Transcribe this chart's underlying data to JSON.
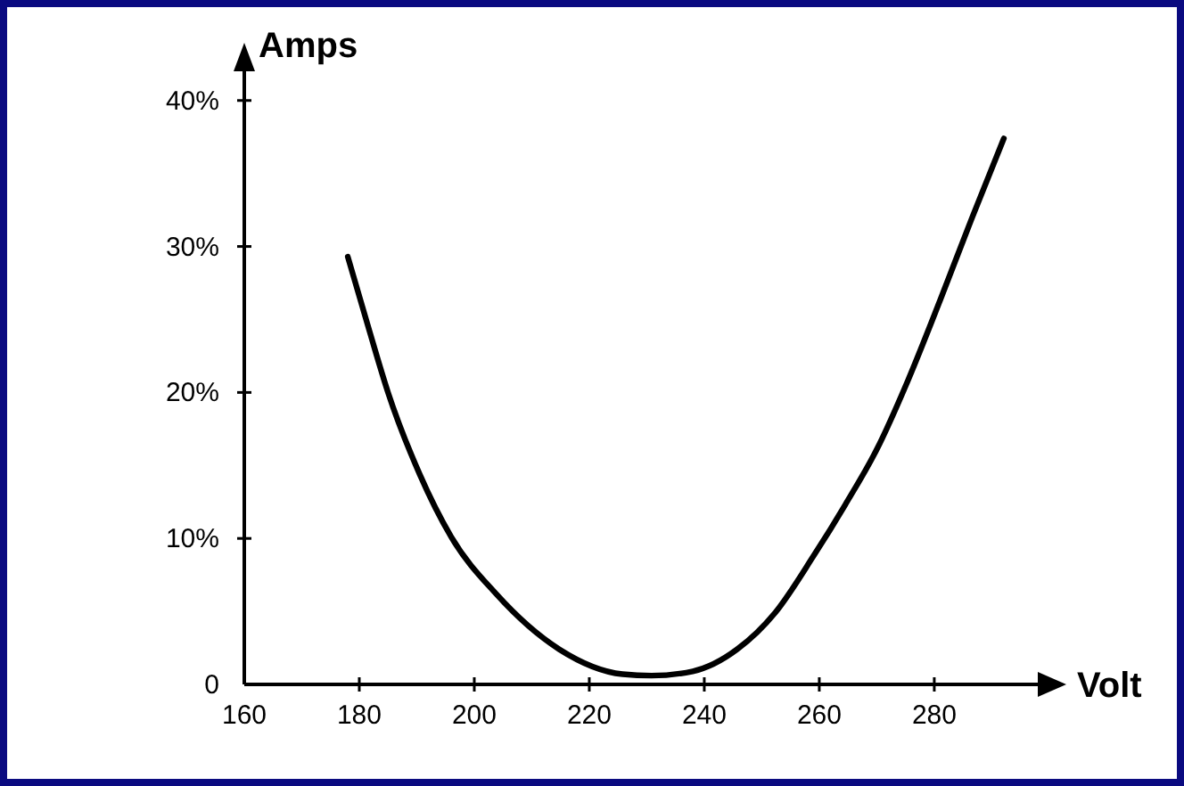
{
  "chart_data": {
    "type": "line",
    "xlabel": "Volt",
    "ylabel": "Amps",
    "x": [
      178.0,
      181.7,
      185.0,
      190.5,
      196.0,
      203.8,
      214.8,
      225.8,
      230.8,
      238.0,
      245.7,
      252.3,
      259.0,
      264.5,
      270.0,
      275.5,
      281.1,
      286.6,
      292.1
    ],
    "series": [
      {
        "color": "#000000",
        "values": [
          29.3,
          24.3,
          20.0,
          14.4,
          10.1,
          6.2,
          2.4,
          0.7,
          0.6,
          0.9,
          2.4,
          4.9,
          8.8,
          12.3,
          16.1,
          20.9,
          26.4,
          32.0,
          37.4
        ]
      }
    ],
    "xlim": [
      160,
      298
    ],
    "ylim": [
      0,
      42
    ],
    "xticks": [
      160,
      180,
      200,
      220,
      240,
      260,
      280
    ],
    "yticks": [
      0,
      {
        "value": 10,
        "label": "10%"
      },
      {
        "value": 20,
        "label": "20%"
      },
      {
        "value": 30,
        "label": "30%"
      },
      {
        "value": 40,
        "label": "40%"
      }
    ],
    "grid": false,
    "marker": "none",
    "line_style": "solid"
  }
}
